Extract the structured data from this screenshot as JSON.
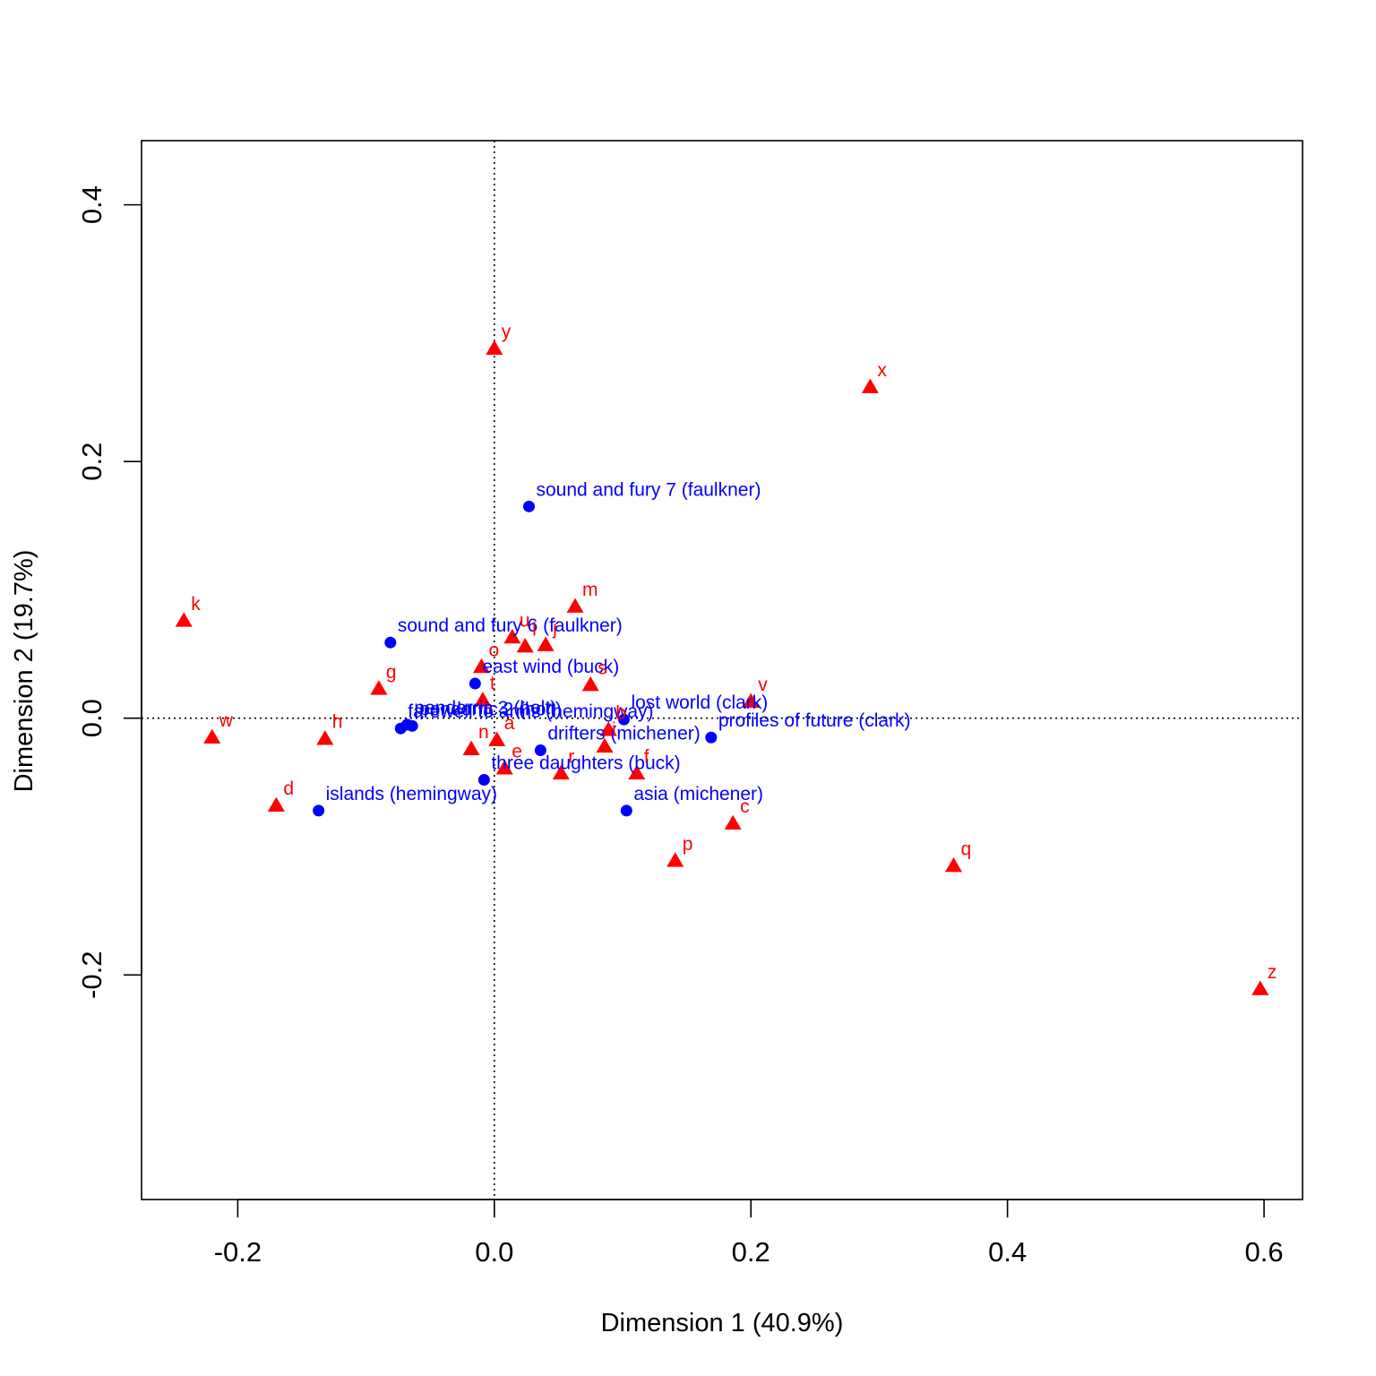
{
  "chart_data": {
    "type": "scatter",
    "title": "",
    "xlabel": "Dimension 1 (40.9%)",
    "ylabel": "Dimension 2 (19.7%)",
    "xlim": [
      -0.275,
      0.63
    ],
    "ylim": [
      -0.375,
      0.45
    ],
    "xticks": [
      -0.2,
      0.0,
      0.2,
      0.4,
      0.6
    ],
    "xtick_labels": [
      "-0.2",
      "0.0",
      "0.2",
      "0.4",
      "0.6"
    ],
    "yticks": [
      -0.2,
      0.0,
      0.2,
      0.4
    ],
    "ytick_labels": [
      "-0.2",
      "0.0",
      "0.2",
      "0.4"
    ],
    "reference_lines": {
      "x": 0,
      "y": 0,
      "style": "dotted"
    },
    "grid": false,
    "colors": {
      "rows": "#0000ff",
      "columns": "#ff0000"
    },
    "series": [
      {
        "marker": "circle",
        "color": "#0000ff",
        "points": [
          {
            "label": "sound and fury 7 (faulkner)",
            "x": 0.027,
            "y": 0.165
          },
          {
            "label": "sound and fury 6 (faulkner)",
            "x": -0.081,
            "y": 0.059
          },
          {
            "label": "east wind (buck)",
            "x": -0.015,
            "y": 0.027
          },
          {
            "label": "pendorric 3 (holt)",
            "x": -0.068,
            "y": -0.005
          },
          {
            "label": "pendorric 2 (holt)",
            "x": -0.064,
            "y": -0.006
          },
          {
            "label": "farewell to arms (hemingway)",
            "x": -0.073,
            "y": -0.008
          },
          {
            "label": "lost world (clark)",
            "x": 0.101,
            "y": -0.001
          },
          {
            "label": "profiles of future (clark)",
            "x": 0.169,
            "y": -0.015
          },
          {
            "label": "drifters (michener)",
            "x": 0.036,
            "y": -0.025
          },
          {
            "label": "three daughters (buck)",
            "x": -0.008,
            "y": -0.048
          },
          {
            "label": "islands (hemingway)",
            "x": -0.137,
            "y": -0.072
          },
          {
            "label": "asia (michener)",
            "x": 0.103,
            "y": -0.072
          }
        ]
      },
      {
        "marker": "triangle",
        "color": "#ff0000",
        "points": [
          {
            "label": "y",
            "x": 0.0,
            "y": 0.288
          },
          {
            "label": "x",
            "x": 0.293,
            "y": 0.258
          },
          {
            "label": "m",
            "x": 0.063,
            "y": 0.087
          },
          {
            "label": "k",
            "x": -0.242,
            "y": 0.076
          },
          {
            "label": "u",
            "x": 0.014,
            "y": 0.063
          },
          {
            "label": "l",
            "x": 0.024,
            "y": 0.056
          },
          {
            "label": "j",
            "x": 0.04,
            "y": 0.057
          },
          {
            "label": "o",
            "x": -0.01,
            "y": 0.04
          },
          {
            "label": "s",
            "x": 0.075,
            "y": 0.026
          },
          {
            "label": "g",
            "x": -0.09,
            "y": 0.023
          },
          {
            "label": "t",
            "x": -0.009,
            "y": 0.014
          },
          {
            "label": "v",
            "x": 0.2,
            "y": 0.013
          },
          {
            "label": "w",
            "x": -0.22,
            "y": -0.015
          },
          {
            "label": "h",
            "x": -0.132,
            "y": -0.016
          },
          {
            "label": "a",
            "x": 0.002,
            "y": -0.017
          },
          {
            "label": "n",
            "x": -0.018,
            "y": -0.024
          },
          {
            "label": "b",
            "x": 0.089,
            "y": -0.009
          },
          {
            "label": "i",
            "x": 0.086,
            "y": -0.022
          },
          {
            "label": "e",
            "x": 0.008,
            "y": -0.039
          },
          {
            "label": "r",
            "x": 0.052,
            "y": -0.043
          },
          {
            "label": "f",
            "x": 0.111,
            "y": -0.043
          },
          {
            "label": "d",
            "x": -0.17,
            "y": -0.068
          },
          {
            "label": "c",
            "x": 0.186,
            "y": -0.082
          },
          {
            "label": "p",
            "x": 0.141,
            "y": -0.111
          },
          {
            "label": "q",
            "x": 0.358,
            "y": -0.115
          },
          {
            "label": "z",
            "x": 0.597,
            "y": -0.211
          }
        ]
      }
    ]
  }
}
